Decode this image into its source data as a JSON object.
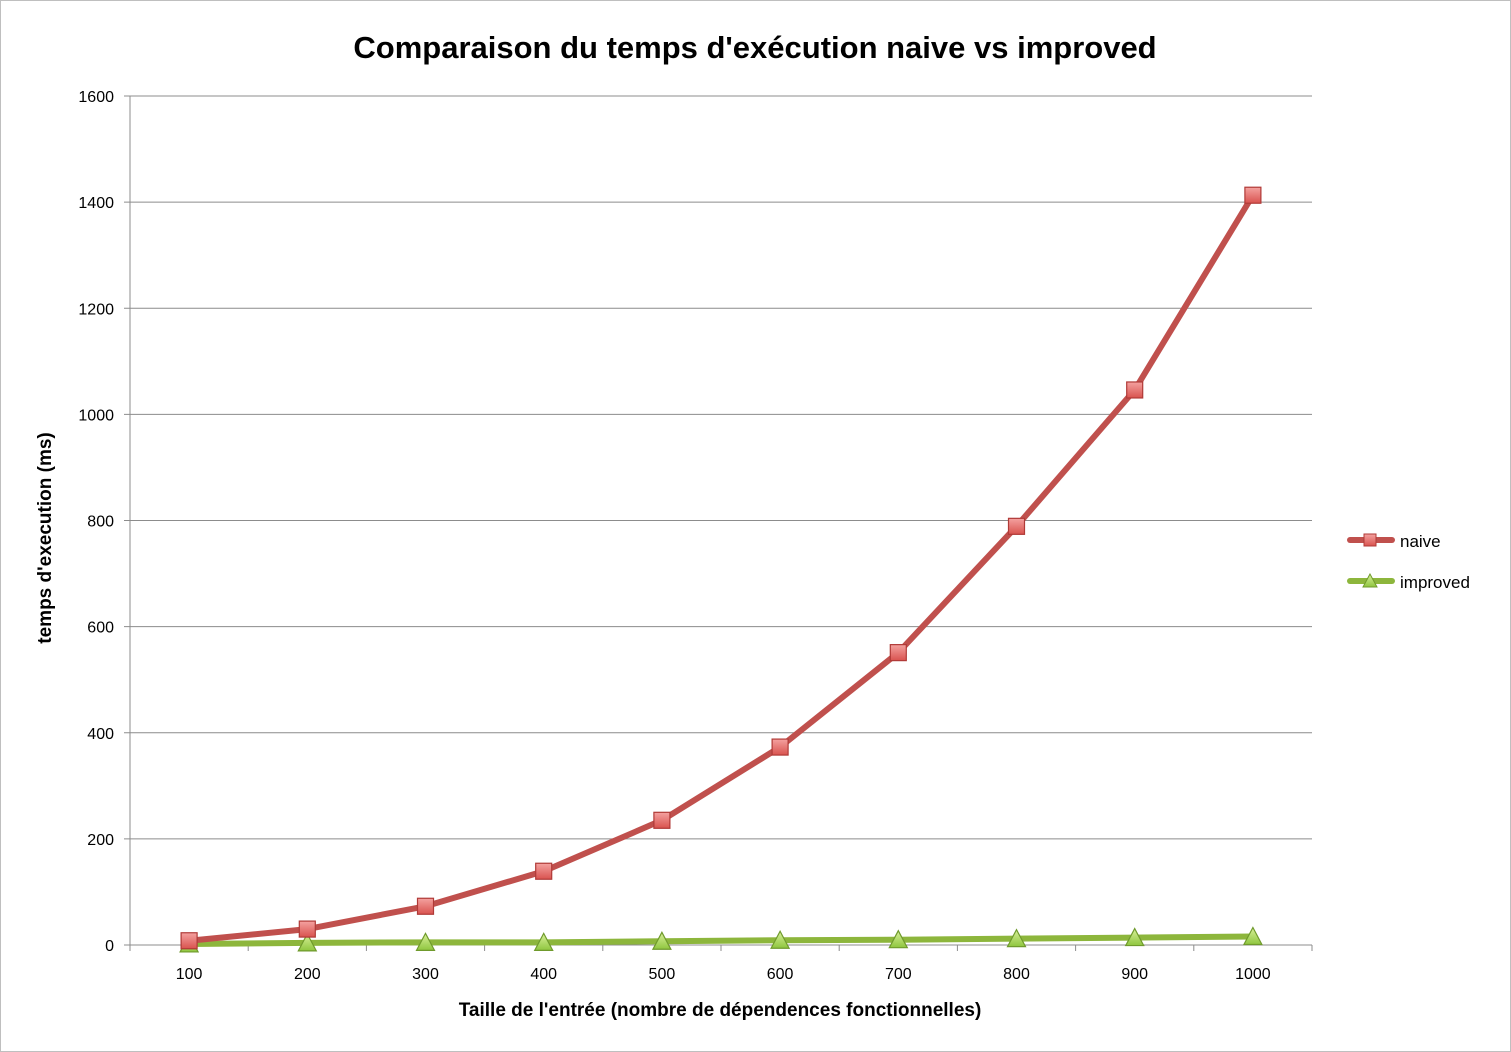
{
  "chart_data": {
    "type": "line",
    "title": "Comparaison du temps d'exécution naive vs improved",
    "xlabel": "Taille de l'entrée (nombre de dépendences fonctionnelles)",
    "ylabel": "temps d'execution (ms)",
    "categories": [
      "100",
      "200",
      "300",
      "400",
      "500",
      "600",
      "700",
      "800",
      "900",
      "1000"
    ],
    "ylim": [
      0,
      1600
    ],
    "yticks": [
      "0",
      "200",
      "400",
      "600",
      "800",
      "1000",
      "1200",
      "1400",
      "1600"
    ],
    "grid": true,
    "legend_position": "right",
    "series": [
      {
        "name": "naive",
        "color": "#c0504d",
        "marker": "square",
        "values": [
          8,
          30,
          73,
          139,
          235,
          373,
          551,
          789,
          1046,
          1413
        ]
      },
      {
        "name": "improved",
        "color": "#8db63c",
        "marker": "triangle",
        "values": [
          2,
          4,
          5,
          5,
          7,
          9,
          10,
          12,
          14,
          16
        ]
      }
    ]
  }
}
